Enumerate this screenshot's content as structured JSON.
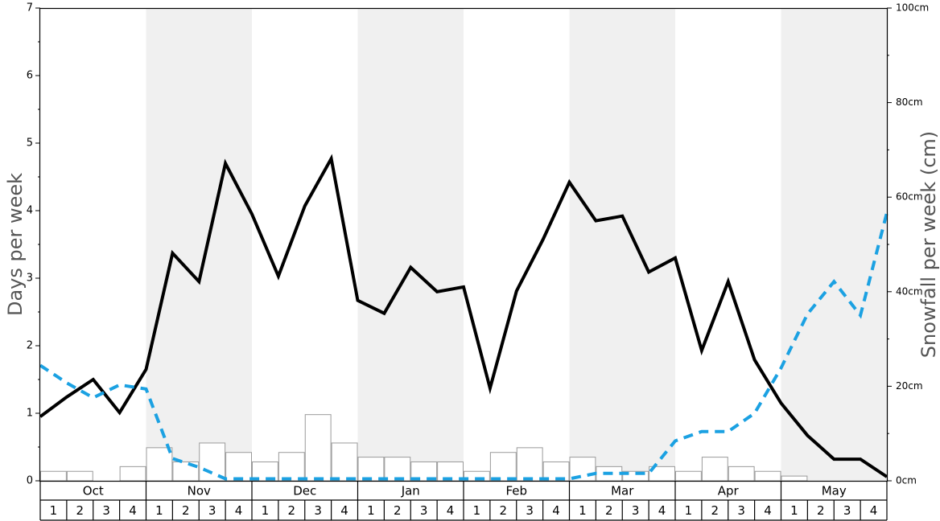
{
  "chart_data": {
    "type": "line",
    "y_left": {
      "label": "Days per week",
      "lim": [
        0,
        7
      ],
      "ticks": [
        "0",
        "1",
        "2",
        "3",
        "4",
        "5",
        "6",
        "7"
      ]
    },
    "y_right": {
      "label": "Snowfall per week (cm)",
      "lim": [
        0,
        100
      ],
      "ticks": [
        "0cm",
        "20cm",
        "40cm",
        "60cm",
        "80cm",
        "100cm"
      ]
    },
    "months": [
      "Oct",
      "Nov",
      "Dec",
      "Jan",
      "Feb",
      "Mar",
      "Apr",
      "May"
    ],
    "weeks": [
      "1",
      "2",
      "3",
      "4"
    ],
    "colors": {
      "days_line": "#000000",
      "dashed_line": "#1ba1e2",
      "bar_stroke": "#9a9a9a",
      "shade": "#f0f0f0"
    },
    "series": [
      {
        "style": "solid",
        "axis": "left",
        "values": [
          0.95,
          1.24,
          1.5,
          1.01,
          1.65,
          3.37,
          2.95,
          4.7,
          3.95,
          3.03,
          4.07,
          4.77,
          2.67,
          2.48,
          3.16,
          2.8,
          2.87,
          1.37,
          2.81,
          3.57,
          4.42,
          3.85,
          3.92,
          3.09,
          3.3,
          1.93,
          2.95,
          1.79,
          1.15,
          0.67,
          0.32,
          0.32,
          0.06
        ]
      },
      {
        "style": "dashed",
        "axis": "left",
        "values": [
          1.71,
          1.45,
          1.23,
          1.42,
          1.36,
          0.33,
          0.2,
          0.03,
          0.03,
          0.03,
          0.03,
          0.03,
          0.03,
          0.03,
          0.03,
          0.03,
          0.03,
          0.03,
          0.03,
          0.03,
          0.03,
          0.11,
          0.11,
          0.11,
          0.59,
          0.73,
          0.73,
          1.0,
          1.67,
          2.47,
          2.95,
          2.45,
          3.97
        ]
      },
      {
        "style": "bar",
        "axis": "right",
        "values": [
          2,
          2,
          0,
          3,
          7,
          4,
          8,
          6,
          4,
          6,
          14,
          8,
          5,
          5,
          4,
          4,
          2,
          6,
          7,
          4,
          5,
          3,
          2,
          3,
          2,
          5,
          3,
          2,
          1,
          0,
          0,
          0
        ]
      }
    ]
  }
}
